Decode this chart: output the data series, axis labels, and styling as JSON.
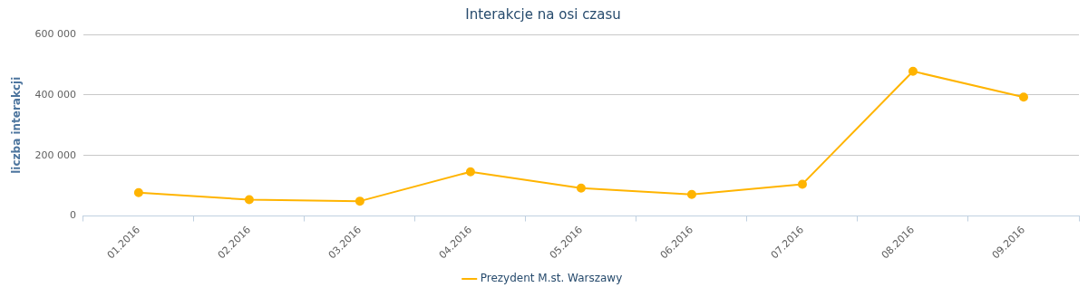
{
  "chart_data": {
    "type": "line",
    "title": "Interakcje na osi czasu",
    "ylabel": "liczba interakcji",
    "categories": [
      "01.2016",
      "02.2016",
      "03.2016",
      "04.2016",
      "05.2016",
      "06.2016",
      "07.2016",
      "08.2016",
      "09.2016"
    ],
    "series": [
      {
        "name": "Prezydent M.st. Warszawy",
        "color": "#ffb400",
        "values": [
          77000,
          54000,
          49000,
          146000,
          92000,
          71000,
          105000,
          478000,
          393000
        ]
      }
    ],
    "ylim": [
      0,
      600000
    ],
    "yticks": [
      {
        "value": 0,
        "label": "0"
      },
      {
        "value": 200000,
        "label": "200 000"
      },
      {
        "value": 400000,
        "label": "400 000"
      },
      {
        "value": 600000,
        "label": "600 000"
      }
    ],
    "grid": "y",
    "legend": "bottom",
    "marker": "circle",
    "line_style": "solid"
  }
}
